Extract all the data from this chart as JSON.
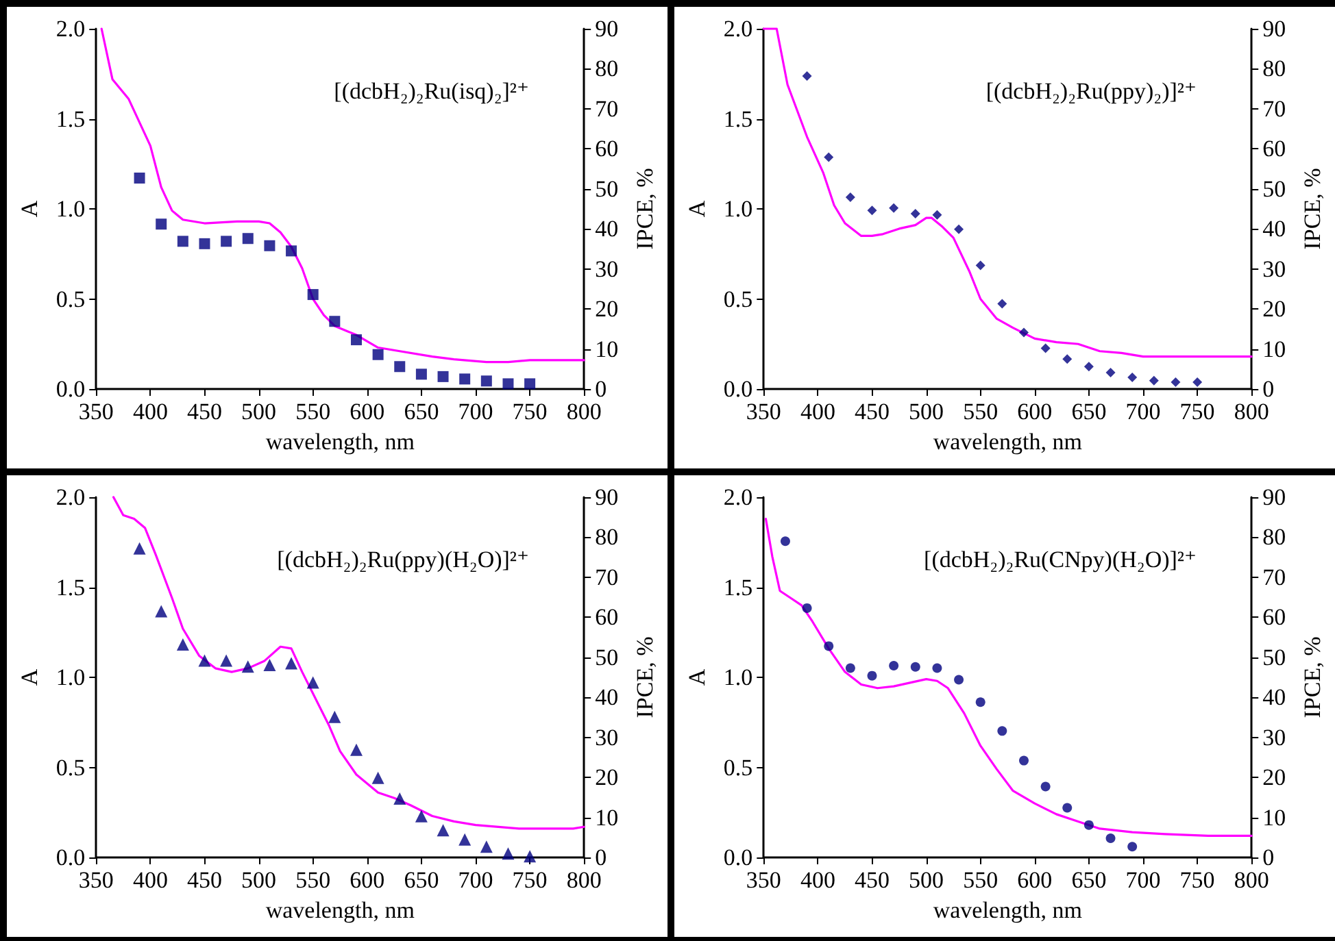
{
  "chart_data": [
    {
      "type": "line",
      "title": "[(dcbH₂)₂Ru(isq)₂]²⁺",
      "xlabel": "wavelength, nm",
      "ylabel": "A",
      "y2label": "IPCE, %",
      "xlim": [
        350,
        800
      ],
      "xticks": [
        350,
        400,
        450,
        500,
        550,
        600,
        650,
        700,
        750,
        800
      ],
      "ylim": [
        0,
        2
      ],
      "yticks": [
        {
          "value": 0,
          "label": "0.0"
        },
        {
          "value": 0.5,
          "label": "0.5"
        },
        {
          "value": 1,
          "label": "1.0"
        },
        {
          "value": 1.5,
          "label": "1.5"
        },
        {
          "value": 2,
          "label": "2.0"
        }
      ],
      "y2lim": [
        0,
        90
      ],
      "y2ticks": [
        0,
        10,
        20,
        30,
        40,
        50,
        60,
        70,
        80,
        90
      ],
      "series": [
        {
          "type": "line",
          "color": "#ff00ff",
          "marker": "none",
          "x": [
            355,
            365,
            380,
            400,
            410,
            420,
            430,
            450,
            480,
            500,
            510,
            520,
            530,
            540,
            550,
            560,
            570,
            590,
            610,
            630,
            660,
            680,
            710,
            730,
            750,
            800
          ],
          "values": [
            2.0,
            1.72,
            1.61,
            1.35,
            1.12,
            0.99,
            0.94,
            0.92,
            0.93,
            0.93,
            0.92,
            0.87,
            0.79,
            0.67,
            0.5,
            0.41,
            0.35,
            0.3,
            0.23,
            0.21,
            0.18,
            0.165,
            0.15,
            0.15,
            0.16,
            0.16
          ]
        },
        {
          "type": "scatter",
          "color": "#000080",
          "marker": "square",
          "axis": "y2",
          "x": [
            390,
            410,
            430,
            450,
            470,
            490,
            510,
            530,
            550,
            570,
            590,
            610,
            630,
            650,
            670,
            690,
            710,
            730,
            750
          ],
          "values": [
            52.7,
            41.2,
            36.9,
            36.3,
            36.9,
            37.6,
            35.8,
            34.5,
            23.6,
            16.9,
            12.3,
            8.6,
            5.6,
            3.7,
            3.1,
            2.5,
            2.0,
            1.3,
            1.3
          ]
        }
      ]
    },
    {
      "type": "line",
      "title": "[(dcbH₂)₂Ru(ppy)₂)]²⁺",
      "xlabel": "wavelength, nm",
      "ylabel": "A",
      "y2label": "IPCE, %",
      "xlim": [
        350,
        800
      ],
      "xticks": [
        350,
        400,
        450,
        500,
        550,
        600,
        650,
        700,
        750,
        800
      ],
      "ylim": [
        0,
        2
      ],
      "yticks": [
        {
          "value": 0,
          "label": "0.0"
        },
        {
          "value": 0.5,
          "label": "0.5"
        },
        {
          "value": 1,
          "label": "1.0"
        },
        {
          "value": 1.5,
          "label": "1.5"
        },
        {
          "value": 2,
          "label": "2.0"
        }
      ],
      "y2lim": [
        0,
        90
      ],
      "y2ticks": [
        0,
        10,
        20,
        30,
        40,
        50,
        60,
        70,
        80,
        90
      ],
      "series": [
        {
          "type": "line",
          "color": "#ff00ff",
          "marker": "none",
          "x": [
            350,
            362,
            372,
            390,
            405,
            415,
            425,
            440,
            450,
            460,
            475,
            490,
            500,
            505,
            515,
            525,
            540,
            550,
            565,
            580,
            600,
            620,
            640,
            660,
            680,
            700,
            740,
            800
          ],
          "values": [
            2.0,
            2.0,
            1.69,
            1.4,
            1.2,
            1.02,
            0.92,
            0.85,
            0.85,
            0.86,
            0.89,
            0.91,
            0.95,
            0.95,
            0.9,
            0.84,
            0.65,
            0.5,
            0.39,
            0.34,
            0.28,
            0.26,
            0.25,
            0.21,
            0.2,
            0.18,
            0.18,
            0.18
          ]
        },
        {
          "type": "scatter",
          "color": "#000080",
          "marker": "diamond",
          "axis": "y2",
          "x": [
            390,
            410,
            430,
            450,
            470,
            490,
            510,
            530,
            550,
            570,
            590,
            610,
            630,
            650,
            670,
            690,
            710,
            730,
            750
          ],
          "values": [
            78.2,
            57.9,
            47.9,
            44.6,
            45.2,
            43.8,
            43.5,
            39.9,
            30.9,
            21.3,
            14.1,
            10.2,
            7.5,
            5.6,
            4.1,
            2.9,
            2.1,
            1.7,
            1.7
          ]
        }
      ]
    },
    {
      "type": "line",
      "title": "[(dcbH₂)₂Ru(ppy)(H₂O)]²⁺",
      "xlabel": "wavelength, nm",
      "ylabel": "A",
      "y2label": "IPCE, %",
      "xlim": [
        350,
        800
      ],
      "xticks": [
        350,
        400,
        450,
        500,
        550,
        600,
        650,
        700,
        750,
        800
      ],
      "ylim": [
        0,
        2
      ],
      "yticks": [
        {
          "value": 0,
          "label": "0.0"
        },
        {
          "value": 0.5,
          "label": "0.5"
        },
        {
          "value": 1,
          "label": "1.0"
        },
        {
          "value": 1.5,
          "label": "1.5"
        },
        {
          "value": 2,
          "label": "2.0"
        }
      ],
      "y2lim": [
        0,
        90
      ],
      "y2ticks": [
        0,
        10,
        20,
        30,
        40,
        50,
        60,
        70,
        80,
        90
      ],
      "series": [
        {
          "type": "line",
          "color": "#ff00ff",
          "marker": "none",
          "x": [
            366,
            375,
            385,
            395,
            405,
            420,
            430,
            445,
            460,
            475,
            490,
            505,
            520,
            530,
            540,
            555,
            565,
            575,
            590,
            610,
            625,
            640,
            660,
            680,
            700,
            740,
            790,
            800
          ],
          "values": [
            2.0,
            1.9,
            1.88,
            1.83,
            1.68,
            1.44,
            1.27,
            1.12,
            1.05,
            1.03,
            1.05,
            1.09,
            1.17,
            1.16,
            1.03,
            0.85,
            0.73,
            0.59,
            0.46,
            0.36,
            0.33,
            0.29,
            0.23,
            0.2,
            0.18,
            0.16,
            0.16,
            0.17
          ]
        },
        {
          "type": "scatter",
          "color": "#000080",
          "marker": "triangle",
          "axis": "y2",
          "x": [
            390,
            410,
            430,
            450,
            470,
            490,
            510,
            530,
            550,
            570,
            590,
            610,
            630,
            650,
            670,
            690,
            710,
            730,
            750
          ],
          "values": [
            77.2,
            61.5,
            53.2,
            49.2,
            49.2,
            47.7,
            48.1,
            48.5,
            43.7,
            35.1,
            26.9,
            19.9,
            14.7,
            10.3,
            6.8,
            4.5,
            2.7,
            1.0,
            0.3
          ]
        }
      ]
    },
    {
      "type": "line",
      "title": "[(dcbH₂)₂Ru(CNpy)(H₂O)]²⁺",
      "xlabel": "wavelength, nm",
      "ylabel": "A",
      "y2label": "IPCE, %",
      "xlim": [
        350,
        800
      ],
      "xticks": [
        350,
        400,
        450,
        500,
        550,
        600,
        650,
        700,
        750,
        800
      ],
      "ylim": [
        0,
        2
      ],
      "yticks": [
        {
          "value": 0,
          "label": "0.0"
        },
        {
          "value": 0.5,
          "label": "0.5"
        },
        {
          "value": 1,
          "label": "1.0"
        },
        {
          "value": 1.5,
          "label": "1.5"
        },
        {
          "value": 2,
          "label": "2.0"
        }
      ],
      "y2lim": [
        0,
        90
      ],
      "y2ticks": [
        0,
        10,
        20,
        30,
        40,
        50,
        60,
        70,
        80,
        90
      ],
      "series": [
        {
          "type": "line",
          "color": "#ff00ff",
          "marker": "none",
          "x": [
            352,
            358,
            365,
            375,
            385,
            395,
            410,
            425,
            440,
            455,
            470,
            485,
            500,
            510,
            520,
            535,
            550,
            565,
            580,
            600,
            620,
            640,
            660,
            690,
            720,
            760,
            800
          ],
          "values": [
            1.88,
            1.67,
            1.48,
            1.44,
            1.4,
            1.31,
            1.16,
            1.03,
            0.96,
            0.94,
            0.95,
            0.97,
            0.99,
            0.98,
            0.94,
            0.8,
            0.62,
            0.49,
            0.37,
            0.3,
            0.24,
            0.2,
            0.16,
            0.14,
            0.13,
            0.12,
            0.12
          ]
        },
        {
          "type": "scatter",
          "color": "#000080",
          "marker": "circle",
          "axis": "y2",
          "x": [
            370,
            390,
            410,
            430,
            450,
            470,
            490,
            510,
            530,
            550,
            570,
            590,
            610,
            630,
            650,
            670,
            690
          ],
          "values": [
            79.0,
            62.3,
            52.8,
            47.3,
            45.4,
            47.9,
            47.6,
            47.3,
            44.4,
            38.8,
            31.6,
            24.2,
            17.7,
            12.4,
            8.1,
            4.8,
            2.7
          ]
        }
      ]
    }
  ]
}
